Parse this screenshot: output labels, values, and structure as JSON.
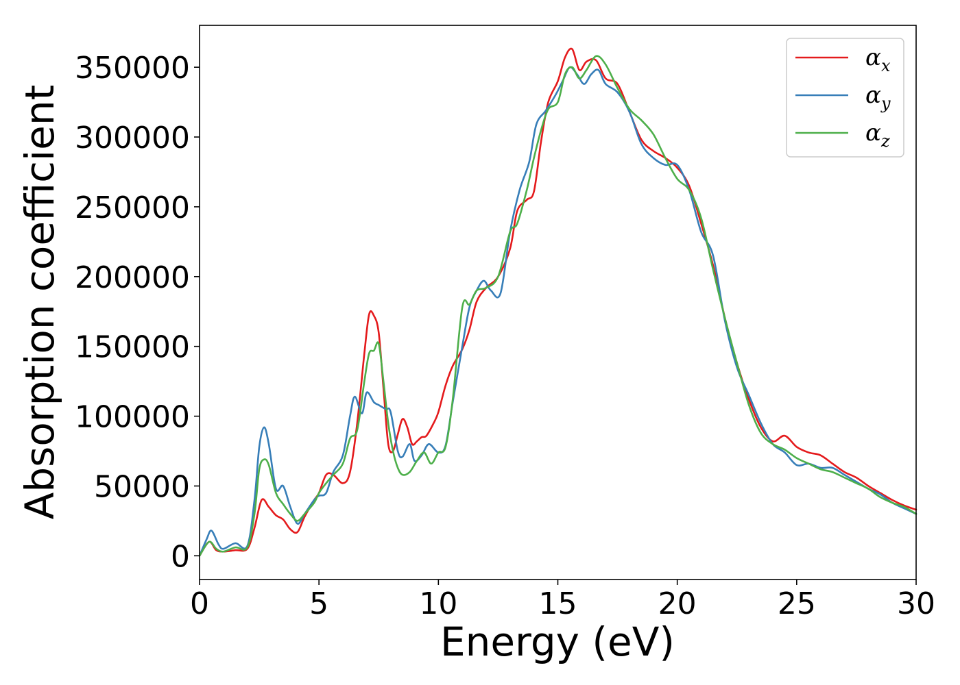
{
  "chart_data": {
    "type": "line",
    "title": "",
    "xlabel": "Energy (eV)",
    "ylabel": "Absorption coefficient",
    "xlim": [
      0,
      30
    ],
    "ylim": [
      -17000,
      380000
    ],
    "xticks": [
      0,
      5,
      10,
      15,
      20,
      25,
      30
    ],
    "yticks": [
      0,
      50000,
      100000,
      150000,
      200000,
      250000,
      300000,
      350000
    ],
    "grid": false,
    "legend_position": "top-right",
    "series": [
      {
        "name": "α_x",
        "label_main": "α",
        "label_sub": "x",
        "color": "#e41a1c",
        "x": [
          0,
          0.4,
          0.7,
          1.0,
          1.5,
          2.0,
          2.3,
          2.6,
          2.9,
          3.2,
          3.5,
          3.8,
          4.1,
          4.4,
          4.8,
          5.0,
          5.3,
          5.6,
          6.0,
          6.3,
          6.6,
          6.9,
          7.1,
          7.3,
          7.5,
          7.7,
          7.9,
          8.1,
          8.3,
          8.5,
          8.7,
          8.9,
          9.1,
          9.3,
          9.5,
          9.8,
          10.0,
          10.3,
          10.6,
          11.0,
          11.3,
          11.6,
          12.0,
          12.5,
          13.0,
          13.3,
          13.7,
          14.0,
          14.3,
          14.6,
          15.0,
          15.3,
          15.6,
          15.9,
          16.2,
          16.6,
          17.0,
          17.5,
          18.0,
          18.5,
          19.0,
          19.5,
          20.0,
          20.5,
          21.0,
          21.5,
          22.0,
          22.5,
          23.0,
          23.5,
          24.0,
          24.5,
          25.0,
          25.5,
          26.0,
          26.5,
          27.0,
          27.5,
          28.0,
          28.5,
          29.0,
          29.5,
          30.0
        ],
        "y": [
          0,
          10000,
          4000,
          3000,
          4000,
          5000,
          20000,
          40000,
          35000,
          29000,
          26000,
          19000,
          17000,
          28000,
          40000,
          45000,
          58000,
          58000,
          52000,
          60000,
          95000,
          145000,
          173000,
          172000,
          160000,
          120000,
          80000,
          75000,
          87000,
          98000,
          92000,
          80000,
          82000,
          85000,
          86000,
          95000,
          103000,
          122000,
          136000,
          148000,
          162000,
          182000,
          192000,
          200000,
          220000,
          247000,
          255000,
          261000,
          297000,
          325000,
          340000,
          357000,
          363000,
          348000,
          354000,
          355000,
          342000,
          338000,
          318000,
          298000,
          290000,
          285000,
          278000,
          265000,
          238000,
          208000,
          170000,
          138000,
          112000,
          92000,
          82000,
          86000,
          78000,
          74000,
          72000,
          66000,
          60000,
          56000,
          50000,
          45000,
          40000,
          36000,
          33000
        ]
      },
      {
        "name": "α_y",
        "label_main": "α",
        "label_sub": "y",
        "color": "#377eb8",
        "x": [
          0,
          0.3,
          0.5,
          0.8,
          1.0,
          1.5,
          2.0,
          2.3,
          2.5,
          2.7,
          2.9,
          3.2,
          3.5,
          3.8,
          4.1,
          4.4,
          4.8,
          5.0,
          5.3,
          5.6,
          6.0,
          6.3,
          6.5,
          6.8,
          7.0,
          7.3,
          7.5,
          7.8,
          8.0,
          8.3,
          8.5,
          8.8,
          9.0,
          9.3,
          9.6,
          10.0,
          10.3,
          10.6,
          11.0,
          11.3,
          11.6,
          11.9,
          12.2,
          12.6,
          13.0,
          13.4,
          13.8,
          14.1,
          14.5,
          14.9,
          15.2,
          15.5,
          15.8,
          16.1,
          16.4,
          16.7,
          17.0,
          17.5,
          18.0,
          18.5,
          19.0,
          19.5,
          20.0,
          20.5,
          21.0,
          21.5,
          22.0,
          22.5,
          23.0,
          23.5,
          24.0,
          24.5,
          25.0,
          25.5,
          26.0,
          26.5,
          27.0,
          27.5,
          28.0,
          28.5,
          29.0,
          29.5,
          30.0
        ],
        "y": [
          0,
          12000,
          18000,
          8000,
          5000,
          9000,
          7000,
          40000,
          78000,
          92000,
          80000,
          48000,
          50000,
          35000,
          23000,
          30000,
          40000,
          43000,
          45000,
          60000,
          72000,
          100000,
          114000,
          102000,
          117000,
          110000,
          108000,
          105000,
          103000,
          75000,
          71000,
          80000,
          68000,
          72000,
          80000,
          74000,
          79000,
          110000,
          150000,
          178000,
          190000,
          197000,
          190000,
          188000,
          232000,
          262000,
          282000,
          309000,
          319000,
          330000,
          340000,
          350000,
          345000,
          338000,
          345000,
          348000,
          338000,
          332000,
          318000,
          295000,
          285000,
          280000,
          280000,
          262000,
          232000,
          215000,
          168000,
          135000,
          115000,
          95000,
          80000,
          74000,
          65000,
          66000,
          63000,
          63000,
          58000,
          53000,
          48000,
          44000,
          38000,
          34000,
          30000
        ]
      },
      {
        "name": "α_z",
        "label_main": "α",
        "label_sub": "z",
        "color": "#4daf4a",
        "x": [
          0,
          0.4,
          0.7,
          1.0,
          1.5,
          2.0,
          2.3,
          2.5,
          2.7,
          2.9,
          3.2,
          3.5,
          3.8,
          4.1,
          4.4,
          4.8,
          5.0,
          5.3,
          5.6,
          6.0,
          6.3,
          6.6,
          6.9,
          7.1,
          7.3,
          7.5,
          7.7,
          7.9,
          8.1,
          8.3,
          8.5,
          8.8,
          9.1,
          9.4,
          9.7,
          10.0,
          10.3,
          10.6,
          11.0,
          11.3,
          11.6,
          12.0,
          12.5,
          13.0,
          13.3,
          13.7,
          14.0,
          14.3,
          14.6,
          15.0,
          15.3,
          15.6,
          15.9,
          16.2,
          16.6,
          17.0,
          17.5,
          18.0,
          18.5,
          19.0,
          19.5,
          20.0,
          20.5,
          21.0,
          21.5,
          22.0,
          22.5,
          23.0,
          23.5,
          24.0,
          24.5,
          25.0,
          25.5,
          26.0,
          26.5,
          27.0,
          27.5,
          28.0,
          28.5,
          29.0,
          29.5,
          30.0
        ],
        "y": [
          0,
          10000,
          5000,
          3000,
          6000,
          6000,
          30000,
          62000,
          69000,
          65000,
          45000,
          37000,
          30000,
          25000,
          30000,
          38000,
          45000,
          52000,
          58000,
          66000,
          84000,
          90000,
          125000,
          145000,
          147000,
          152000,
          125000,
          95000,
          75000,
          63000,
          58000,
          60000,
          68000,
          74000,
          66000,
          74000,
          78000,
          112000,
          178000,
          180000,
          190000,
          192000,
          200000,
          232000,
          238000,
          262000,
          285000,
          305000,
          320000,
          325000,
          345000,
          350000,
          342000,
          348000,
          358000,
          352000,
          335000,
          320000,
          312000,
          302000,
          285000,
          270000,
          262000,
          242000,
          205000,
          170000,
          138000,
          108000,
          88000,
          80000,
          76000,
          70000,
          66000,
          62000,
          60000,
          56000,
          52000,
          48000,
          42000,
          38000,
          35000,
          30000
        ]
      }
    ]
  }
}
